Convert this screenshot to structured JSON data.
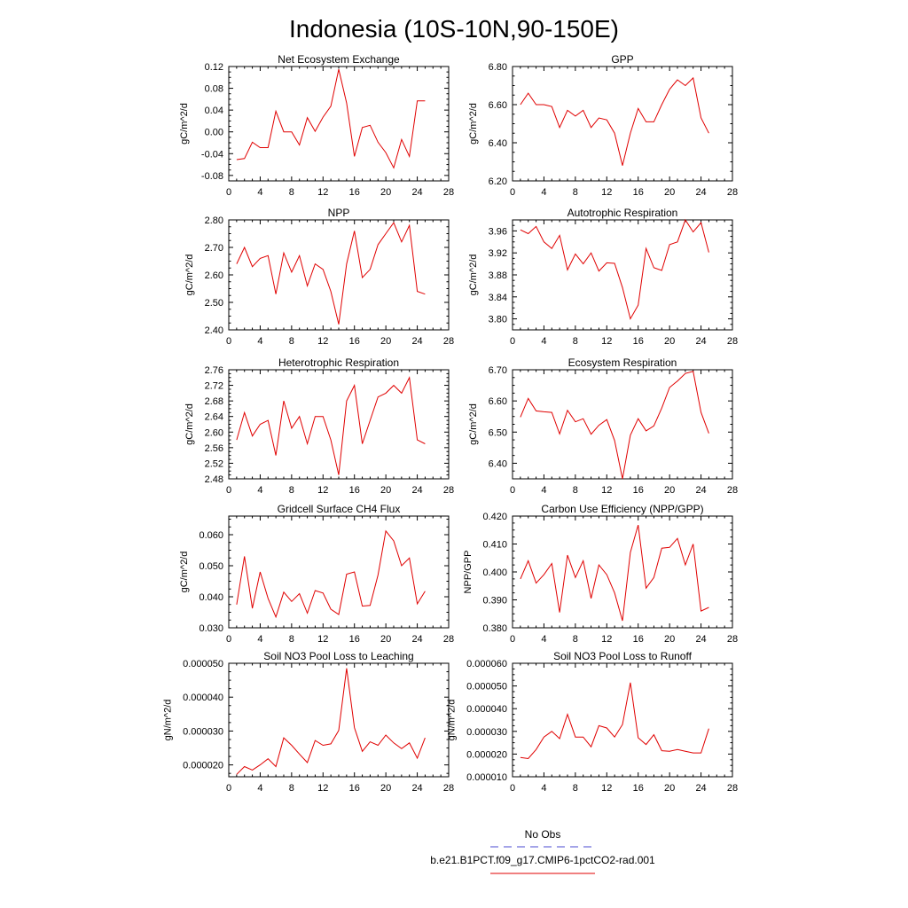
{
  "title": "Indonesia (10S-10N,90-150E)",
  "legend": {
    "entries": [
      {
        "label": "No Obs",
        "color": "#4a4ad0",
        "dash": "dash"
      },
      {
        "label": "b.e21.B1PCT.f09_g17.CMIP6-1pctCO2-rad.001",
        "color": "#e00000",
        "dash": "solid"
      }
    ]
  },
  "chart_data": [
    {
      "type": "line",
      "title": "Net Ecosystem Exchange",
      "ylabel": "gC/m^2/d",
      "xlim": [
        0,
        28
      ],
      "ylim": [
        -0.09,
        0.12
      ],
      "xticks": [
        0,
        4,
        8,
        12,
        16,
        20,
        24,
        28
      ],
      "yticks": [
        "-0.08",
        "-0.04",
        "0.00",
        "0.04",
        "0.08",
        "0.12"
      ],
      "series": [
        {
          "color": "#e00000",
          "x": [
            1,
            2,
            3,
            4,
            5,
            6,
            7,
            8,
            9,
            10,
            11,
            12,
            13,
            14,
            15,
            16,
            17,
            18,
            19,
            20,
            21,
            22,
            23,
            24,
            25
          ],
          "y": [
            -0.051,
            -0.049,
            -0.019,
            -0.029,
            -0.029,
            0.038,
            0.0,
            0.0,
            -0.024,
            0.026,
            0.001,
            0.027,
            0.047,
            0.115,
            0.053,
            -0.045,
            0.008,
            0.012,
            -0.019,
            -0.038,
            -0.066,
            -0.014,
            -0.045,
            0.057,
            0.057
          ]
        }
      ]
    },
    {
      "type": "line",
      "title": "GPP",
      "ylabel": "gC/m^2/d",
      "xlim": [
        0,
        28
      ],
      "ylim": [
        6.2,
        6.8
      ],
      "xticks": [
        0,
        4,
        8,
        12,
        16,
        20,
        24,
        28
      ],
      "yticks": [
        "6.20",
        "6.40",
        "6.60",
        "6.80"
      ],
      "series": [
        {
          "color": "#e00000",
          "x": [
            1,
            2,
            3,
            4,
            5,
            6,
            7,
            8,
            9,
            10,
            11,
            12,
            13,
            14,
            15,
            16,
            17,
            18,
            19,
            20,
            21,
            22,
            23,
            24,
            25
          ],
          "y": [
            6.6,
            6.66,
            6.6,
            6.6,
            6.59,
            6.48,
            6.57,
            6.54,
            6.57,
            6.48,
            6.53,
            6.52,
            6.45,
            6.28,
            6.45,
            6.58,
            6.51,
            6.51,
            6.6,
            6.68,
            6.73,
            6.7,
            6.74,
            6.53,
            6.45
          ]
        }
      ]
    },
    {
      "type": "line",
      "title": "NPP",
      "ylabel": "gC/m^2/d",
      "xlim": [
        0,
        28
      ],
      "ylim": [
        2.4,
        2.8
      ],
      "xticks": [
        0,
        4,
        8,
        12,
        16,
        20,
        24,
        28
      ],
      "yticks": [
        "2.40",
        "2.50",
        "2.60",
        "2.70",
        "2.80"
      ],
      "series": [
        {
          "color": "#e00000",
          "x": [
            1,
            2,
            3,
            4,
            5,
            6,
            7,
            8,
            9,
            10,
            11,
            12,
            13,
            14,
            15,
            16,
            17,
            18,
            19,
            20,
            21,
            22,
            23,
            24,
            25
          ],
          "y": [
            2.64,
            2.7,
            2.63,
            2.66,
            2.67,
            2.53,
            2.68,
            2.61,
            2.67,
            2.56,
            2.64,
            2.62,
            2.54,
            2.42,
            2.64,
            2.76,
            2.59,
            2.62,
            2.71,
            2.75,
            2.79,
            2.72,
            2.78,
            2.54,
            2.53
          ]
        }
      ]
    },
    {
      "type": "line",
      "title": "Autotrophic Respiration",
      "ylabel": "gC/m^2/d",
      "xlim": [
        0,
        28
      ],
      "ylim": [
        3.78,
        3.98
      ],
      "xticks": [
        0,
        4,
        8,
        12,
        16,
        20,
        24,
        28
      ],
      "yticks": [
        "3.80",
        "3.84",
        "3.88",
        "3.92",
        "3.96"
      ],
      "series": [
        {
          "color": "#e00000",
          "x": [
            1,
            2,
            3,
            4,
            5,
            6,
            7,
            8,
            9,
            10,
            11,
            12,
            13,
            14,
            15,
            16,
            17,
            18,
            19,
            20,
            21,
            22,
            23,
            24,
            25
          ],
          "y": [
            3.962,
            3.955,
            3.968,
            3.94,
            3.928,
            3.952,
            3.889,
            3.918,
            3.9,
            3.92,
            3.887,
            3.902,
            3.901,
            3.857,
            3.8,
            3.825,
            3.928,
            3.893,
            3.888,
            3.935,
            3.94,
            3.98,
            3.958,
            3.975,
            3.921
          ]
        }
      ]
    },
    {
      "type": "line",
      "title": "Heterotrophic Respiration",
      "ylabel": "gC/m^2/d",
      "xlim": [
        0,
        28
      ],
      "ylim": [
        2.48,
        2.76
      ],
      "xticks": [
        0,
        4,
        8,
        12,
        16,
        20,
        24,
        28
      ],
      "yticks": [
        "2.48",
        "2.52",
        "2.56",
        "2.60",
        "2.64",
        "2.68",
        "2.72",
        "2.76"
      ],
      "series": [
        {
          "color": "#e00000",
          "x": [
            1,
            2,
            3,
            4,
            5,
            6,
            7,
            8,
            9,
            10,
            11,
            12,
            13,
            14,
            15,
            16,
            17,
            18,
            19,
            20,
            21,
            22,
            23,
            24,
            25
          ],
          "y": [
            2.58,
            2.65,
            2.59,
            2.62,
            2.63,
            2.54,
            2.68,
            2.61,
            2.64,
            2.57,
            2.64,
            2.64,
            2.58,
            2.49,
            2.68,
            2.72,
            2.57,
            2.63,
            2.69,
            2.7,
            2.72,
            2.7,
            2.74,
            2.58,
            2.57
          ]
        }
      ]
    },
    {
      "type": "line",
      "title": "Ecosystem Respiration",
      "ylabel": "gC/m^2/d",
      "xlim": [
        0,
        28
      ],
      "ylim": [
        6.35,
        6.7
      ],
      "xticks": [
        0,
        4,
        8,
        12,
        16,
        20,
        24,
        28
      ],
      "yticks": [
        "6.40",
        "6.50",
        "6.60",
        "6.70"
      ],
      "series": [
        {
          "color": "#e00000",
          "x": [
            1,
            2,
            3,
            4,
            5,
            6,
            7,
            8,
            9,
            10,
            11,
            12,
            13,
            14,
            15,
            16,
            17,
            18,
            19,
            20,
            21,
            22,
            23,
            24,
            25
          ],
          "y": [
            6.548,
            6.608,
            6.568,
            6.565,
            6.563,
            6.494,
            6.57,
            6.533,
            6.543,
            6.493,
            6.522,
            6.54,
            6.473,
            6.35,
            6.49,
            6.543,
            6.504,
            6.52,
            6.577,
            6.643,
            6.664,
            6.688,
            6.695,
            6.563,
            6.496
          ]
        }
      ]
    },
    {
      "type": "line",
      "title": "Gridcell Surface CH4 Flux",
      "ylabel": "gC/m^2/d",
      "xlim": [
        0,
        28
      ],
      "ylim": [
        0.03,
        0.066
      ],
      "xticks": [
        0,
        4,
        8,
        12,
        16,
        20,
        24,
        28
      ],
      "yticks": [
        "0.030",
        "0.040",
        "0.050",
        "0.060"
      ],
      "series": [
        {
          "color": "#e00000",
          "x": [
            1,
            2,
            3,
            4,
            5,
            6,
            7,
            8,
            9,
            10,
            11,
            12,
            13,
            14,
            15,
            16,
            17,
            18,
            19,
            20,
            21,
            22,
            23,
            24,
            25
          ],
          "y": [
            0.0375,
            0.053,
            0.0363,
            0.048,
            0.0395,
            0.0335,
            0.0415,
            0.0385,
            0.041,
            0.0347,
            0.042,
            0.0412,
            0.036,
            0.0343,
            0.0473,
            0.048,
            0.037,
            0.0372,
            0.047,
            0.0612,
            0.058,
            0.05,
            0.0525,
            0.0377,
            0.0418
          ]
        }
      ]
    },
    {
      "type": "line",
      "title": "Carbon Use Efficiency (NPP/GPP)",
      "ylabel": "NPP/GPP",
      "xlim": [
        0,
        28
      ],
      "ylim": [
        0.38,
        0.42
      ],
      "xticks": [
        0,
        4,
        8,
        12,
        16,
        20,
        24,
        28
      ],
      "yticks": [
        "0.380",
        "0.390",
        "0.400",
        "0.410",
        "0.420"
      ],
      "series": [
        {
          "color": "#e00000",
          "x": [
            1,
            2,
            3,
            4,
            5,
            6,
            7,
            8,
            9,
            10,
            11,
            12,
            13,
            14,
            15,
            16,
            17,
            18,
            19,
            20,
            21,
            22,
            23,
            24,
            25
          ],
          "y": [
            0.3975,
            0.404,
            0.396,
            0.399,
            0.403,
            0.3855,
            0.406,
            0.398,
            0.404,
            0.3905,
            0.4025,
            0.399,
            0.3925,
            0.3825,
            0.407,
            0.4168,
            0.3942,
            0.398,
            0.4085,
            0.4088,
            0.412,
            0.4025,
            0.41,
            0.386,
            0.3873
          ]
        }
      ]
    },
    {
      "type": "line",
      "title": "Soil NO3 Pool Loss to Leaching",
      "ylabel": "gN/m^2/d",
      "xlim": [
        0,
        28
      ],
      "ylim": [
        1.65e-05,
        5e-05
      ],
      "xticks": [
        0,
        4,
        8,
        12,
        16,
        20,
        24,
        28
      ],
      "yticks": [
        "0.000020",
        "0.000030",
        "0.000040",
        "0.000050"
      ],
      "series": [
        {
          "color": "#e00000",
          "x": [
            1,
            2,
            3,
            4,
            5,
            6,
            7,
            8,
            9,
            10,
            11,
            12,
            13,
            14,
            15,
            16,
            17,
            18,
            19,
            20,
            21,
            22,
            23,
            24,
            25
          ],
          "y": [
            1.72e-05,
            1.95e-05,
            1.85e-05,
            2e-05,
            2.18e-05,
            1.95e-05,
            2.8e-05,
            2.58e-05,
            2.32e-05,
            2.07e-05,
            2.72e-05,
            2.58e-05,
            2.62e-05,
            3.02e-05,
            4.85e-05,
            3.1e-05,
            2.4e-05,
            2.68e-05,
            2.58e-05,
            2.88e-05,
            2.65e-05,
            2.48e-05,
            2.65e-05,
            2.2e-05,
            2.8e-05
          ]
        }
      ]
    },
    {
      "type": "line",
      "title": "Soil NO3 Pool Loss to Runoff",
      "ylabel": "gN/m^2/d",
      "xlim": [
        0,
        28
      ],
      "ylim": [
        1e-05,
        6e-05
      ],
      "xticks": [
        0,
        4,
        8,
        12,
        16,
        20,
        24,
        28
      ],
      "yticks": [
        "0.000010",
        "0.000020",
        "0.000030",
        "0.000040",
        "0.000050",
        "0.000060"
      ],
      "series": [
        {
          "color": "#e00000",
          "x": [
            1,
            2,
            3,
            4,
            5,
            6,
            7,
            8,
            9,
            10,
            11,
            12,
            13,
            14,
            15,
            16,
            17,
            18,
            19,
            20,
            21,
            22,
            23,
            24,
            25
          ],
          "y": [
            1.85e-05,
            1.8e-05,
            2.2e-05,
            2.75e-05,
            3e-05,
            2.68e-05,
            3.75e-05,
            2.75e-05,
            2.75e-05,
            2.32e-05,
            3.25e-05,
            3.15e-05,
            2.75e-05,
            3.3e-05,
            5.15e-05,
            2.72e-05,
            2.42e-05,
            2.85e-05,
            2.15e-05,
            2.12e-05,
            2.2e-05,
            2.12e-05,
            2.05e-05,
            2.05e-05,
            3.12e-05
          ]
        }
      ]
    }
  ]
}
